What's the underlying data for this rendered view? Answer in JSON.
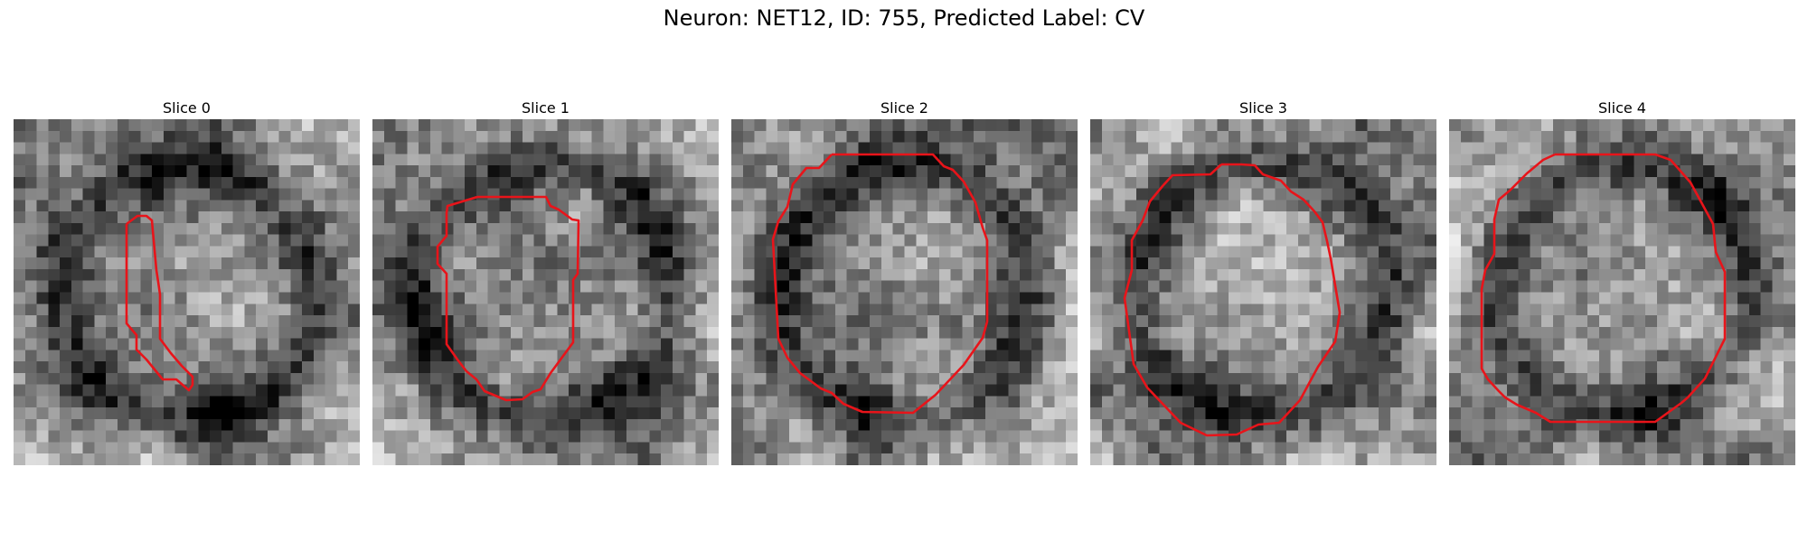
{
  "figure": {
    "title": "Neuron: NET12, ID: 755, Predicted Label: CV",
    "contour_color": "#e8141a"
  },
  "panels": [
    {
      "title": "Slice 0",
      "image": "grayscale-microscopy-slice",
      "icon": "neuron-outline-contour"
    },
    {
      "title": "Slice 1",
      "image": "grayscale-microscopy-slice",
      "icon": "neuron-outline-contour"
    },
    {
      "title": "Slice 2",
      "image": "grayscale-microscopy-slice",
      "icon": "neuron-outline-contour"
    },
    {
      "title": "Slice 3",
      "image": "grayscale-microscopy-slice",
      "icon": "neuron-outline-contour"
    },
    {
      "title": "Slice 4",
      "image": "grayscale-microscopy-slice",
      "icon": "neuron-outline-contour"
    }
  ]
}
